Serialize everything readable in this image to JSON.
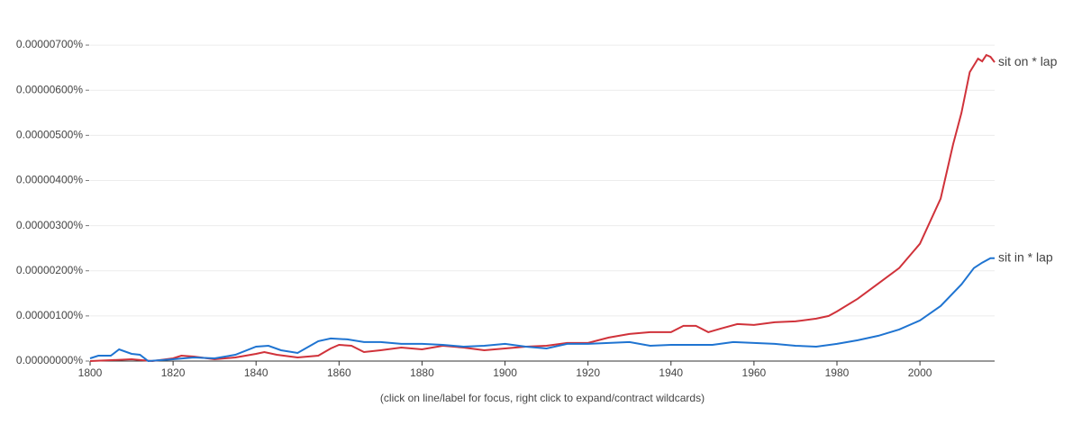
{
  "chart_data": {
    "type": "line",
    "footer": "(click on line/label for focus, right click to expand/contract wildcards)",
    "xlim": [
      1800,
      2018
    ],
    "xticks": [
      1800,
      1820,
      1840,
      1860,
      1880,
      1900,
      1920,
      1940,
      1960,
      1980,
      2000
    ],
    "ylim": [
      0,
      7.5e-06
    ],
    "yticks": [
      {
        "value": 0,
        "label": "0.00000000%"
      },
      {
        "value": 1e-06,
        "label": "0.00000100%"
      },
      {
        "value": 2e-06,
        "label": "0.00000200%"
      },
      {
        "value": 3e-06,
        "label": "0.00000300%"
      },
      {
        "value": 4e-06,
        "label": "0.00000400%"
      },
      {
        "value": 5e-06,
        "label": "0.00000500%"
      },
      {
        "value": 6e-06,
        "label": "0.00000600%"
      },
      {
        "value": 7e-06,
        "label": "0.00000700%"
      }
    ],
    "grid": true,
    "series": [
      {
        "name": "sit on * lap",
        "color": "#d0323a",
        "x": [
          1800,
          1805,
          1810,
          1815,
          1820,
          1822,
          1825,
          1830,
          1835,
          1840,
          1842,
          1845,
          1850,
          1855,
          1858,
          1860,
          1863,
          1866,
          1870,
          1875,
          1880,
          1885,
          1890,
          1895,
          1900,
          1905,
          1910,
          1915,
          1920,
          1925,
          1930,
          1935,
          1940,
          1943,
          1946,
          1949,
          1952,
          1956,
          1960,
          1965,
          1970,
          1975,
          1978,
          1980,
          1985,
          1990,
          1995,
          2000,
          2005,
          2008,
          2010,
          2012,
          2014,
          2015,
          2016,
          2017,
          2018
        ],
        "values": [
          0,
          2e-08,
          4e-08,
          0,
          6e-08,
          1.2e-07,
          1e-07,
          4e-08,
          8e-08,
          1.6e-07,
          2e-07,
          1.4e-07,
          8e-08,
          1.2e-07,
          2.8e-07,
          3.6e-07,
          3.4e-07,
          2e-07,
          2.4e-07,
          3e-07,
          2.6e-07,
          3.4e-07,
          3e-07,
          2.4e-07,
          2.8e-07,
          3.2e-07,
          3.4e-07,
          4e-07,
          4e-07,
          5.2e-07,
          6e-07,
          6.4e-07,
          6.4e-07,
          7.8e-07,
          7.8e-07,
          6.4e-07,
          7.2e-07,
          8.2e-07,
          8e-07,
          8.6e-07,
          8.8e-07,
          9.4e-07,
          1e-06,
          1.1e-06,
          1.38e-06,
          1.72e-06,
          2.06e-06,
          2.6e-06,
          3.6e-06,
          4.8e-06,
          5.5e-06,
          6.4e-06,
          6.7e-06,
          6.64e-06,
          6.78e-06,
          6.74e-06,
          6.62e-06
        ]
      },
      {
        "name": "sit in * lap",
        "color": "#1f74d1",
        "x": [
          1800,
          1802,
          1805,
          1807,
          1810,
          1812,
          1814,
          1820,
          1825,
          1830,
          1835,
          1840,
          1843,
          1846,
          1850,
          1855,
          1858,
          1862,
          1866,
          1870,
          1875,
          1880,
          1885,
          1890,
          1895,
          1900,
          1905,
          1910,
          1915,
          1920,
          1925,
          1930,
          1935,
          1940,
          1945,
          1950,
          1955,
          1960,
          1965,
          1970,
          1975,
          1980,
          1985,
          1990,
          1995,
          2000,
          2005,
          2010,
          2013,
          2015,
          2017,
          2018
        ],
        "values": [
          6e-08,
          1.2e-07,
          1.2e-07,
          2.6e-07,
          1.6e-07,
          1.4e-07,
          0,
          4e-08,
          8e-08,
          6e-08,
          1.4e-07,
          3.2e-07,
          3.4e-07,
          2.4e-07,
          1.8e-07,
          4.4e-07,
          5e-07,
          4.8e-07,
          4.2e-07,
          4.2e-07,
          3.8e-07,
          3.8e-07,
          3.6e-07,
          3.2e-07,
          3.4e-07,
          3.8e-07,
          3.2e-07,
          2.8e-07,
          3.8e-07,
          3.8e-07,
          4e-07,
          4.2e-07,
          3.4e-07,
          3.6e-07,
          3.6e-07,
          3.6e-07,
          4.2e-07,
          4e-07,
          3.8e-07,
          3.4e-07,
          3.2e-07,
          3.8e-07,
          4.6e-07,
          5.6e-07,
          7e-07,
          9e-07,
          1.22e-06,
          1.7e-06,
          2.06e-06,
          2.18e-06,
          2.28e-06,
          2.28e-06
        ]
      }
    ]
  }
}
